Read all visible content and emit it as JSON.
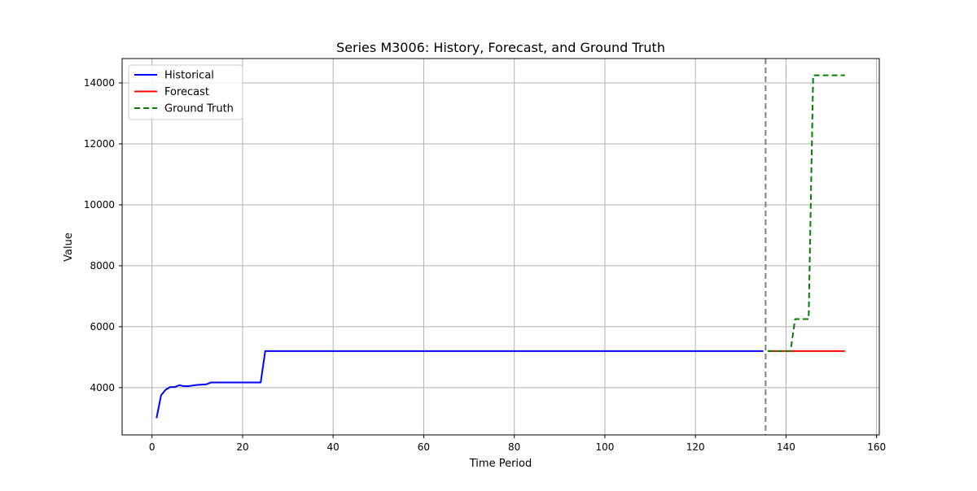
{
  "chart_data": {
    "type": "line",
    "title": "Series M3006: History, Forecast, and Ground Truth",
    "xlabel": "Time Period",
    "ylabel": "Value",
    "xlim": [
      -6.6,
      160.6
    ],
    "ylim": [
      2450,
      14800
    ],
    "xticks": [
      0,
      20,
      40,
      60,
      80,
      100,
      120,
      140,
      160
    ],
    "yticks": [
      4000,
      6000,
      8000,
      10000,
      12000,
      14000
    ],
    "grid": true,
    "legend_position": "upper-left",
    "forecast_boundary_x": 135.5,
    "series": [
      {
        "name": "Historical",
        "color": "#0000ff",
        "style": "solid",
        "x": [
          1,
          2,
          3,
          4,
          5,
          6,
          7,
          8,
          9,
          10,
          11,
          12,
          13,
          14,
          15,
          16,
          17,
          18,
          19,
          20,
          21,
          22,
          23,
          24,
          25,
          26,
          135
        ],
        "y": [
          3000,
          3750,
          3930,
          4020,
          4020,
          4080,
          4050,
          4050,
          4070,
          4090,
          4100,
          4110,
          4170,
          4170,
          4170,
          4170,
          4170,
          4170,
          4170,
          4170,
          4170,
          4170,
          4170,
          4170,
          5200,
          5200,
          5200
        ]
      },
      {
        "name": "Forecast",
        "color": "#ff0000",
        "style": "solid",
        "x": [
          136,
          153
        ],
        "y": [
          5200,
          5200
        ]
      },
      {
        "name": "Ground Truth",
        "color": "#008000",
        "style": "dashed",
        "x": [
          136,
          137,
          138,
          139,
          140,
          141,
          142,
          143,
          144,
          145,
          146,
          147,
          148,
          149,
          150,
          151,
          152,
          153
        ],
        "y": [
          5200,
          5200,
          5200,
          5200,
          5200,
          5200,
          6250,
          6250,
          6250,
          6250,
          14250,
          14250,
          14250,
          14250,
          14250,
          14250,
          14250,
          14250
        ]
      }
    ]
  }
}
